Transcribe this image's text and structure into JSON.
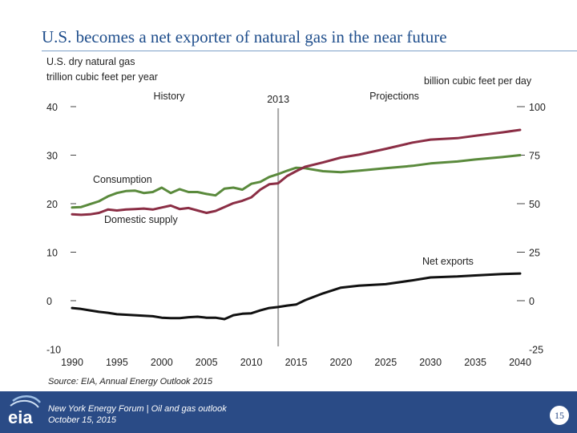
{
  "slide": {
    "title": "U.S. becomes a net exporter of natural gas in the near future",
    "left_unit_line1": "U.S. dry natural gas",
    "left_unit_line2": "trillion cubic feet per year",
    "right_unit": "billion cubic feet per day",
    "source": "Source:  EIA, Annual Energy Outlook 2015",
    "footer_line1": "New York Energy Forum | Oil and gas outlook",
    "footer_line2": "October 15, 2015",
    "page_number": "15",
    "logo_text": "eia",
    "colors": {
      "title": "#1f4e8c",
      "consumption": "#5a8a3c",
      "domestic_supply": "#8b2e45",
      "net_exports": "#111111",
      "footer": "#2a4b86"
    }
  },
  "chart_data": {
    "type": "line",
    "x_ticks": [
      "1990",
      "1995",
      "2000",
      "2005",
      "2010",
      "2015",
      "2020",
      "2025",
      "2030",
      "2035",
      "2040"
    ],
    "y_left_ticks": [
      "40",
      "30",
      "20",
      "10",
      "0",
      "-10"
    ],
    "y_right_ticks": [
      "100",
      "75",
      "50",
      "25",
      "0",
      "-25"
    ],
    "ylim_left": [
      -10,
      40
    ],
    "ylim_right": [
      -25,
      100
    ],
    "xlim": [
      1990,
      2040
    ],
    "divider_year": 2013,
    "annotations": {
      "history": "History",
      "divider_year_label": "2013",
      "projections": "Projections"
    },
    "series": [
      {
        "name": "Consumption",
        "x": [
          1990,
          1991,
          1992,
          1993,
          1994,
          1995,
          1996,
          1997,
          1998,
          1999,
          2000,
          2001,
          2002,
          2003,
          2004,
          2005,
          2006,
          2007,
          2008,
          2009,
          2010,
          2011,
          2012,
          2013,
          2014,
          2015,
          2016,
          2018,
          2020,
          2022,
          2025,
          2028,
          2030,
          2033,
          2035,
          2038,
          2040
        ],
        "values": [
          19.2,
          19.3,
          19.9,
          20.5,
          21.5,
          22.2,
          22.6,
          22.7,
          22.2,
          22.4,
          23.3,
          22.2,
          23.0,
          22.4,
          22.4,
          22.0,
          21.7,
          23.1,
          23.3,
          22.9,
          24.1,
          24.5,
          25.5,
          26.1,
          26.8,
          27.4,
          27.3,
          26.7,
          26.5,
          26.8,
          27.3,
          27.8,
          28.3,
          28.7,
          29.1,
          29.6,
          30.0
        ]
      },
      {
        "name": "Domestic supply",
        "x": [
          1990,
          1991,
          1992,
          1993,
          1994,
          1995,
          1996,
          1997,
          1998,
          1999,
          2000,
          2001,
          2002,
          2003,
          2004,
          2005,
          2006,
          2007,
          2008,
          2009,
          2010,
          2011,
          2012,
          2013,
          2014,
          2015,
          2016,
          2018,
          2020,
          2022,
          2025,
          2028,
          2030,
          2033,
          2035,
          2038,
          2040
        ],
        "values": [
          17.8,
          17.7,
          17.8,
          18.1,
          18.8,
          18.6,
          18.8,
          18.9,
          19.0,
          18.8,
          19.2,
          19.6,
          18.9,
          19.1,
          18.6,
          18.1,
          18.5,
          19.3,
          20.1,
          20.6,
          21.3,
          22.9,
          24.0,
          24.2,
          25.7,
          26.7,
          27.6,
          28.5,
          29.5,
          30.1,
          31.3,
          32.6,
          33.2,
          33.5,
          34.0,
          34.7,
          35.2
        ]
      },
      {
        "name": "Net exports",
        "x": [
          1990,
          1991,
          1992,
          1993,
          1994,
          1995,
          1996,
          1997,
          1998,
          1999,
          2000,
          2001,
          2002,
          2003,
          2004,
          2005,
          2006,
          2007,
          2008,
          2009,
          2010,
          2011,
          2012,
          2013,
          2014,
          2015,
          2016,
          2018,
          2020,
          2022,
          2025,
          2028,
          2030,
          2033,
          2035,
          2038,
          2040
        ],
        "values": [
          -1.5,
          -1.7,
          -2.0,
          -2.3,
          -2.5,
          -2.8,
          -2.9,
          -3.0,
          -3.1,
          -3.2,
          -3.5,
          -3.6,
          -3.6,
          -3.4,
          -3.3,
          -3.5,
          -3.5,
          -3.8,
          -3.0,
          -2.7,
          -2.6,
          -2.0,
          -1.5,
          -1.3,
          -1.0,
          -0.8,
          0.1,
          1.5,
          2.7,
          3.1,
          3.4,
          4.2,
          4.8,
          5.0,
          5.2,
          5.5,
          5.6
        ]
      }
    ],
    "series_labels": {
      "consumption": "Consumption",
      "domestic_supply": "Domestic supply",
      "net_exports": "Net exports"
    }
  }
}
